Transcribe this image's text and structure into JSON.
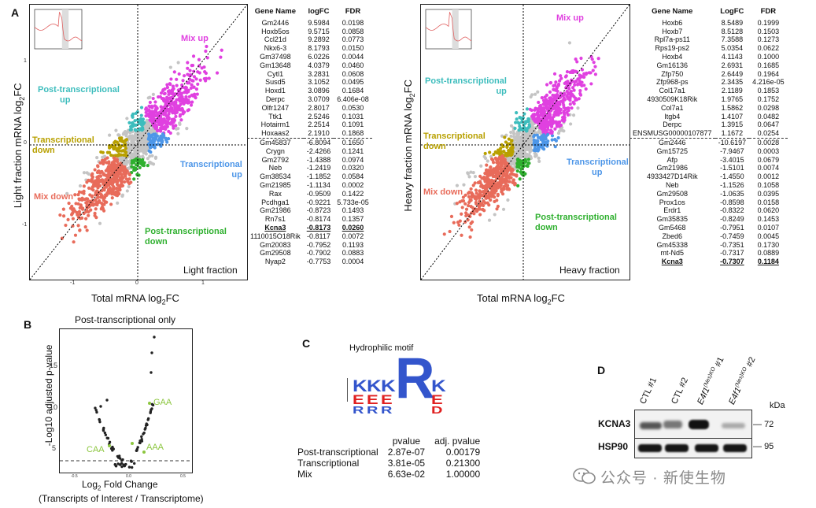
{
  "panels": {
    "a": {
      "label": "A",
      "left_plot": {
        "ylabel": "Light fraction mRNA log2FC",
        "ylabel_parts": [
          "Light fraction mRNA log",
          "2",
          "FC"
        ],
        "xlabel_parts": [
          "Total mRNA log",
          "2",
          "FC"
        ],
        "fraction_label": "Light fraction",
        "x_ticks": [
          "-1",
          "0",
          "1"
        ],
        "y_ticks": [
          "1",
          "0",
          "-1"
        ],
        "quadrants": {
          "mix_up": "Mix up",
          "post_up": [
            "Post-transcriptional",
            "up"
          ],
          "trans_down": [
            "Transcriptional",
            "down"
          ],
          "trans_up": [
            "Transcriptional",
            "up"
          ],
          "mix_down": "Mix down",
          "post_down": [
            "Post-transcriptional",
            "down"
          ]
        }
      },
      "right_plot": {
        "ylabel_parts": [
          "Heavy fraction mRNA log",
          "2",
          "FC"
        ],
        "xlabel_parts": [
          "Total mRNA log",
          "2",
          "FC"
        ],
        "fraction_label": "Heavy fraction",
        "quadrants": {
          "mix_up": "Mix up",
          "post_up": [
            "Post-transcriptional",
            "up"
          ],
          "trans_down": [
            "Transcriptional",
            "down"
          ],
          "trans_up": [
            "Transcriptional",
            "up"
          ],
          "mix_down": "Mix down",
          "post_down": [
            "Post-transcriptional",
            "down"
          ]
        }
      },
      "left_table": {
        "headers": [
          "Gene Name",
          "logFC",
          "FDR"
        ],
        "up": [
          [
            "Gm2446",
            "9.5984",
            "0.0198"
          ],
          [
            "Hoxb5os",
            "9.5715",
            "0.0858"
          ],
          [
            "Ccl21d",
            "9.2892",
            "0.0773"
          ],
          [
            "Nkx6-3",
            "8.1793",
            "0.0150"
          ],
          [
            "Gm37498",
            "6.0226",
            "0.0044"
          ],
          [
            "Gm13648",
            "4.0379",
            "0.0460"
          ],
          [
            "Cytl1",
            "3.2831",
            "0.0608"
          ],
          [
            "Susd5",
            "3.1052",
            "0.0495"
          ],
          [
            "Hoxd1",
            "3.0896",
            "0.1684"
          ],
          [
            "Derpc",
            "3.0709",
            "6.406e-08"
          ],
          [
            "Olfr1247",
            "2.8017",
            "0.0530"
          ],
          [
            "Ttk1",
            "2.5246",
            "0.1031"
          ],
          [
            "Hotairm1",
            "2.2514",
            "0.1091"
          ],
          [
            "Hoxaas2",
            "2.1910",
            "0.1868"
          ]
        ],
        "down": [
          [
            "Gm45837",
            "-6.8094",
            "0.1650"
          ],
          [
            "Crygn",
            "-2.4266",
            "0.1241"
          ],
          [
            "Gm2792",
            "-1.4388",
            "0.0974"
          ],
          [
            "Neb",
            "-1.2419",
            "0.0320"
          ],
          [
            "Gm38534",
            "-1.1852",
            "0.0584"
          ],
          [
            "Gm21985",
            "-1.1134",
            "0.0002"
          ],
          [
            "Rax",
            "-0.9509",
            "0.1422"
          ],
          [
            "Pcdhga1",
            "-0.9221",
            "5.733e-05"
          ],
          [
            "Gm21986",
            "-0.8723",
            "0.1493"
          ],
          [
            "Rn7s1",
            "-0.8174",
            "0.1357"
          ],
          [
            "Kcna3",
            "-0.8173",
            "0.0260"
          ],
          [
            "1110015O18Rik",
            "-0.8117",
            "0.0072"
          ],
          [
            "Gm20083",
            "-0.7952",
            "0.1193"
          ],
          [
            "Gm29508",
            "-0.7902",
            "0.0883"
          ],
          [
            "Nyap2",
            "-0.7753",
            "0.0004"
          ]
        ],
        "highlight_down_index": 10
      },
      "right_table": {
        "headers": [
          "Gene Name",
          "LogFC",
          "FDR"
        ],
        "up": [
          [
            "Hoxb6",
            "8.5489",
            "0.1999"
          ],
          [
            "Hoxb7",
            "8.5128",
            "0.1503"
          ],
          [
            "Rpl7a-ps11",
            "7.3588",
            "0.1273"
          ],
          [
            "Rps19-ps2",
            "5.0354",
            "0.0622"
          ],
          [
            "Hoxb4",
            "4.1143",
            "0.1000"
          ],
          [
            "Gm16136",
            "2.6931",
            "0.1685"
          ],
          [
            "Zfp750",
            "2.6449",
            "0.1964"
          ],
          [
            "Zfp968-ps",
            "2.3435",
            "4.216e-05"
          ],
          [
            "Col17a1",
            "2.1189",
            "0.1853"
          ],
          [
            "4930509K18Rik",
            "1.9765",
            "0.1752"
          ],
          [
            "Col7a1",
            "1.5862",
            "0.0298"
          ],
          [
            "Itgb4",
            "1.4107",
            "0.0482"
          ],
          [
            "Derpc",
            "1.3915",
            "0.0647"
          ],
          [
            "ENSMUSG00000107877",
            "1.1672",
            "0.0254"
          ]
        ],
        "down": [
          [
            "Gm2446",
            "-10.6197",
            "0.0028"
          ],
          [
            "Gm15725",
            "-7.9467",
            "0.0003"
          ],
          [
            "Afp",
            "-3.4015",
            "0.0679"
          ],
          [
            "Gm21986",
            "-1.5101",
            "0.0074"
          ],
          [
            "4933427D14Rik",
            "-1.4550",
            "0.0012"
          ],
          [
            "Neb",
            "-1.1526",
            "0.1058"
          ],
          [
            "Gm29508",
            "-1.0635",
            "0.0395"
          ],
          [
            "Prox1os",
            "-0.8598",
            "0.0158"
          ],
          [
            "Erdr1",
            "-0.8322",
            "0.0620"
          ],
          [
            "Gm35835",
            "-0.8249",
            "0.1453"
          ],
          [
            "Gm5468",
            "-0.7951",
            "0.0107"
          ],
          [
            "Zbed6",
            "-0.7459",
            "0.0045"
          ],
          [
            "Gm45338",
            "-0.7351",
            "0.1730"
          ],
          [
            "mt-Nd5",
            "-0.7317",
            "0.0889"
          ],
          [
            "Kcna3",
            "-0.7307",
            "0.1184"
          ]
        ],
        "highlight_down_index": 14
      }
    },
    "b": {
      "label": "B",
      "title": "Post-transcriptional only",
      "ylabel": "-Log10 adjusted p-value",
      "xlabel_parts": [
        "Log",
        "2",
        " Fold Change"
      ],
      "xlabel2": "(Transcripts of Interest / Transcriptome)",
      "y_ticks": [
        "15",
        "10",
        "5"
      ],
      "x_ticks": [
        "-0.5",
        "0.0",
        "0.5"
      ],
      "labels": [
        "GAA",
        "CAA",
        "AAA"
      ]
    },
    "c": {
      "label": "C",
      "title": "Hydrophilic motif",
      "pv_headers": [
        "pvalue",
        "adj. pvalue"
      ],
      "rows": [
        [
          "Post-transcriptional",
          "2.87e-07",
          "0.00179"
        ],
        [
          "Transcriptional",
          "3.81e-05",
          "0.21300"
        ],
        [
          "Mix",
          "6.63e-02",
          "1.00000"
        ]
      ]
    },
    "d": {
      "label": "D",
      "lanes": [
        "CTL #1",
        "CTL #2",
        "E4f1",
        "E4f1"
      ],
      "lane_sup": [
        "(Nes)KO",
        "(Nes)KO"
      ],
      "lane_suffix": [
        " #1",
        " #2"
      ],
      "kda": "kDa",
      "bands": [
        {
          "name": "KCNA3",
          "mw": "72"
        },
        {
          "name": "HSP90",
          "mw": "95"
        }
      ]
    }
  },
  "watermark": "公众号 · 新使生物",
  "colors": {
    "mix_up": "#e040e0",
    "post_up": "#3dbdbd",
    "trans_down": "#b8a000",
    "trans_up": "#4d96e8",
    "mix_down": "#e86b5a",
    "post_down": "#2fb02f",
    "grey": "#c4c4c4",
    "label_green": "#8cc63f"
  }
}
